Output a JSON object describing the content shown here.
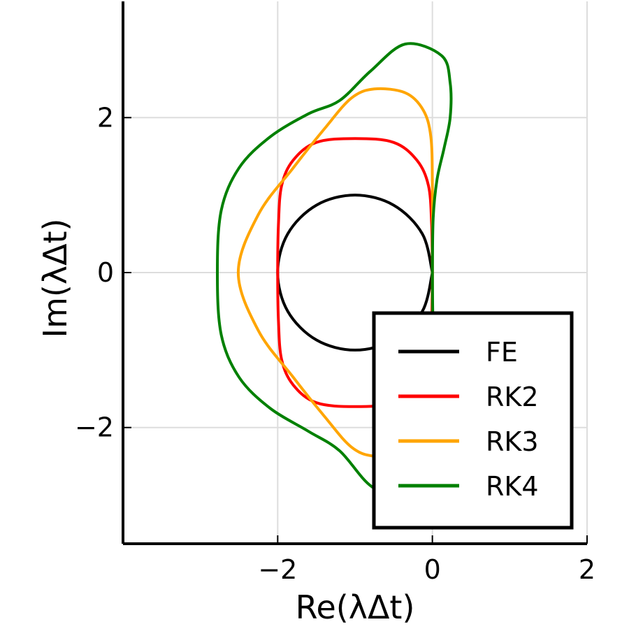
{
  "chart_data": {
    "type": "line",
    "title": "",
    "xlabel": "Re(λΔt)",
    "ylabel": "Im(λΔt)",
    "xlim": [
      -4,
      2
    ],
    "ylim": [
      -3.5,
      3.5
    ],
    "x_ticks": [
      -2,
      0,
      2
    ],
    "x_tick_labels": [
      "−2",
      "0",
      "2"
    ],
    "y_ticks": [
      -2,
      0,
      2
    ],
    "y_tick_labels": [
      "−2",
      "0",
      "2"
    ],
    "grid": true,
    "legend_position": "bottom-right",
    "series": [
      {
        "name": "FE",
        "color": "#000000",
        "points": [
          [
            0,
            0
          ],
          [
            -0.13,
            0.5
          ],
          [
            -0.5,
            0.87
          ],
          [
            -1,
            1
          ],
          [
            -1.5,
            0.87
          ],
          [
            -1.87,
            0.5
          ],
          [
            -2,
            0
          ],
          [
            -1.87,
            -0.5
          ],
          [
            -1.5,
            -0.87
          ],
          [
            -1,
            -1
          ],
          [
            -0.5,
            -0.87
          ],
          [
            -0.13,
            -0.5
          ],
          [
            0,
            0
          ]
        ]
      },
      {
        "name": "RK2",
        "color": "#ff0000",
        "points": [
          [
            0,
            0
          ],
          [
            -0.01,
            0.62
          ],
          [
            -0.05,
            1.12
          ],
          [
            -0.2,
            1.45
          ],
          [
            -0.5,
            1.68
          ],
          [
            -1,
            1.73
          ],
          [
            -1.5,
            1.68
          ],
          [
            -1.8,
            1.45
          ],
          [
            -1.95,
            1.12
          ],
          [
            -1.99,
            0.62
          ],
          [
            -2,
            0
          ],
          [
            -1.99,
            -0.62
          ],
          [
            -1.95,
            -1.12
          ],
          [
            -1.8,
            -1.45
          ],
          [
            -1.5,
            -1.68
          ],
          [
            -1,
            -1.73
          ],
          [
            -0.5,
            -1.68
          ],
          [
            -0.2,
            -1.45
          ],
          [
            -0.05,
            -1.12
          ],
          [
            -0.01,
            -0.62
          ],
          [
            0,
            0
          ]
        ]
      },
      {
        "name": "RK3",
        "color": "#ffa500",
        "points": [
          [
            0,
            0
          ],
          [
            0,
            1.1
          ],
          [
            -0.02,
            1.75
          ],
          [
            -0.12,
            2.1
          ],
          [
            -0.35,
            2.32
          ],
          [
            -0.75,
            2.37
          ],
          [
            -1.05,
            2.25
          ],
          [
            -1.4,
            1.85
          ],
          [
            -1.8,
            1.35
          ],
          [
            -2.25,
            0.75
          ],
          [
            -2.51,
            0
          ],
          [
            -2.25,
            -0.75
          ],
          [
            -1.8,
            -1.35
          ],
          [
            -1.4,
            -1.85
          ],
          [
            -1.05,
            -2.25
          ],
          [
            -0.75,
            -2.37
          ],
          [
            -0.35,
            -2.32
          ],
          [
            -0.12,
            -2.1
          ],
          [
            -0.02,
            -1.75
          ],
          [
            0,
            -1.1
          ],
          [
            0,
            0
          ]
        ]
      },
      {
        "name": "RK4",
        "color": "#008000",
        "points": [
          [
            0,
            0
          ],
          [
            0.01,
            0.7
          ],
          [
            0.06,
            1.2
          ],
          [
            0.15,
            1.6
          ],
          [
            0.23,
            2.0
          ],
          [
            0.23,
            2.45
          ],
          [
            0.12,
            2.8
          ],
          [
            -0.35,
            2.95
          ],
          [
            -0.8,
            2.6
          ],
          [
            -1.2,
            2.22
          ],
          [
            -1.6,
            2.05
          ],
          [
            -2.1,
            1.75
          ],
          [
            -2.5,
            1.35
          ],
          [
            -2.73,
            0.8
          ],
          [
            -2.78,
            0
          ],
          [
            -2.73,
            -0.8
          ],
          [
            -2.5,
            -1.35
          ],
          [
            -2.1,
            -1.75
          ],
          [
            -1.6,
            -2.05
          ],
          [
            -1.2,
            -2.3
          ],
          [
            -0.8,
            -2.75
          ],
          [
            -0.35,
            -2.95
          ],
          [
            0.12,
            -2.8
          ],
          [
            0.23,
            -2.45
          ],
          [
            0.23,
            -2.0
          ],
          [
            0.15,
            -1.6
          ],
          [
            0.06,
            -1.2
          ],
          [
            0.01,
            -0.7
          ],
          [
            0,
            0
          ]
        ]
      }
    ]
  }
}
